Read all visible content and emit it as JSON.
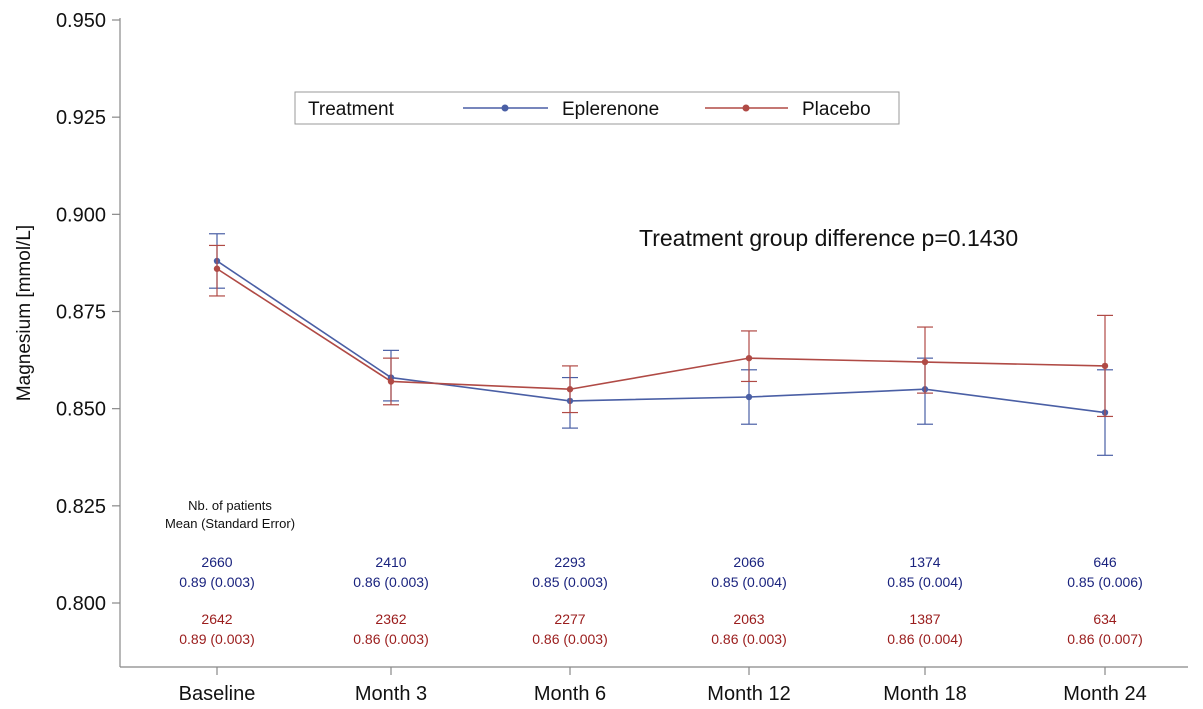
{
  "chart_data": {
    "type": "line",
    "categories": [
      "Baseline",
      "Month 3",
      "Month 6",
      "Month 12",
      "Month 18",
      "Month 24"
    ],
    "ylabel": "Magnesium [mmol/L]",
    "ylim": [
      0.79,
      0.95
    ],
    "yticks": [
      0.8,
      0.825,
      0.85,
      0.875,
      0.9,
      0.925,
      0.95
    ],
    "ytick_labels": [
      "0.800",
      "0.825",
      "0.850",
      "0.875",
      "0.900",
      "0.925",
      "0.950"
    ],
    "grid": false,
    "legend": {
      "title": "Treatment",
      "placement": "top"
    },
    "annotation": "Treatment group difference p=0.1430",
    "series": [
      {
        "name": "Eplerenone",
        "color": "#4a5fa5",
        "values": [
          0.888,
          0.858,
          0.852,
          0.853,
          0.855,
          0.849
        ],
        "err_upper": [
          0.895,
          0.865,
          0.858,
          0.86,
          0.863,
          0.86
        ],
        "err_lower": [
          0.881,
          0.852,
          0.845,
          0.846,
          0.846,
          0.838
        ]
      },
      {
        "name": "Placebo",
        "color": "#b04a45",
        "values": [
          0.886,
          0.857,
          0.855,
          0.863,
          0.862,
          0.861
        ],
        "err_upper": [
          0.892,
          0.863,
          0.861,
          0.87,
          0.871,
          0.874
        ],
        "err_lower": [
          0.879,
          0.851,
          0.849,
          0.857,
          0.854,
          0.848
        ]
      }
    ],
    "table": {
      "header_line1": "Nb. of patients",
      "header_line2": "Mean (Standard Error)",
      "rows": [
        {
          "color": "#1a237e",
          "n": [
            "2660",
            "2410",
            "2293",
            "2066",
            "1374",
            "646"
          ],
          "mean_se": [
            "0.89 (0.003)",
            "0.86 (0.003)",
            "0.85 (0.003)",
            "0.85 (0.004)",
            "0.85 (0.004)",
            "0.85 (0.006)"
          ]
        },
        {
          "color": "#9a1c1c",
          "n": [
            "2642",
            "2362",
            "2277",
            "2063",
            "1387",
            "634"
          ],
          "mean_se": [
            "0.89 (0.003)",
            "0.86 (0.003)",
            "0.86 (0.003)",
            "0.86 (0.003)",
            "0.86 (0.004)",
            "0.86 (0.007)"
          ]
        }
      ]
    }
  }
}
